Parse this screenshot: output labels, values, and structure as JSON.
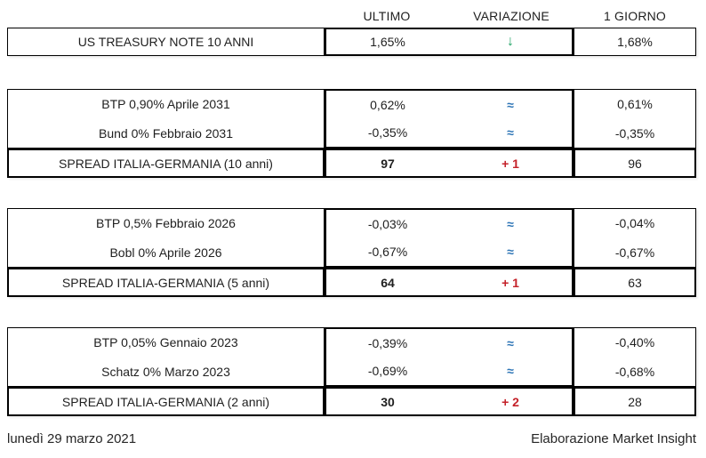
{
  "header": {
    "columns": [
      "ULTIMO",
      "VARIAZIONE",
      "1 GIORNO"
    ]
  },
  "treasury": {
    "label": "US TREASURY NOTE 10 ANNI",
    "ultimo": "1,65%",
    "variazione": "↓",
    "giorno": "1,68%"
  },
  "sections": [
    {
      "bonds": [
        {
          "label": "BTP 0,90% Aprile 2031",
          "ultimo": "0,62%",
          "variazione": "≈",
          "giorno": "0,61%"
        },
        {
          "label": "Bund 0% Febbraio 2031",
          "ultimo": "-0,35%",
          "variazione": "≈",
          "giorno": "-0,35%"
        }
      ],
      "spread": {
        "label": "SPREAD ITALIA-GERMANIA (10 anni)",
        "ultimo": "97",
        "variazione": "+ 1",
        "giorno": "96"
      }
    },
    {
      "bonds": [
        {
          "label": "BTP 0,5% Febbraio 2026",
          "ultimo": "-0,03%",
          "variazione": "≈",
          "giorno": "-0,04%"
        },
        {
          "label": "Bobl 0% Aprile 2026",
          "ultimo": "-0,67%",
          "variazione": "≈",
          "giorno": "-0,67%"
        }
      ],
      "spread": {
        "label": "SPREAD ITALIA-GERMANIA (5 anni)",
        "ultimo": "64",
        "variazione": "+ 1",
        "giorno": "63"
      }
    },
    {
      "bonds": [
        {
          "label": "BTP 0,05% Gennaio 2023",
          "ultimo": "-0,39%",
          "variazione": "≈",
          "giorno": "-0,40%"
        },
        {
          "label": "Schatz 0% Marzo 2023",
          "ultimo": "-0,69%",
          "variazione": "≈",
          "giorno": "-0,68%"
        }
      ],
      "spread": {
        "label": "SPREAD ITALIA-GERMANIA (2 anni)",
        "ultimo": "30",
        "variazione": "+ 2",
        "giorno": "28"
      }
    }
  ],
  "footer": {
    "date": "lunedì 29 marzo 2021",
    "credit": "Elaborazione Market Insight"
  },
  "colors": {
    "arrow_green": "#21A366",
    "approx_blue": "#2E75B6",
    "delta_red": "#C42129",
    "border_black": "#000000"
  }
}
